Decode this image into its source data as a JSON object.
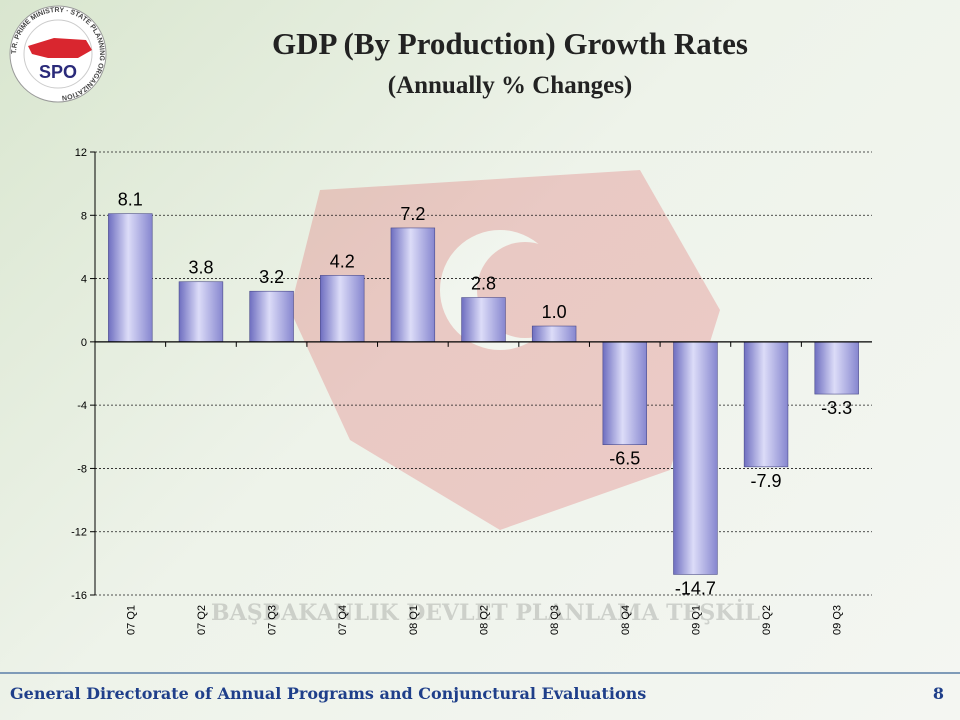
{
  "header": {
    "logo_ring_text": "T.R. PRIME MINISTRY · STATE PLANNING ORGANIZATION",
    "logo_abbr": "SPO",
    "logo_color": "#d9262f"
  },
  "watermark_text": "T.C. BAŞBAKANLIK DEVLET PLANLAMA TEŞKİLATI",
  "footer": {
    "text": "General Directorate of Annual Programs and Conjunctural Evaluations",
    "page_number": "8"
  },
  "chart_data": {
    "type": "bar",
    "title": "GDP (By Production) Growth Rates",
    "subtitle": "(Annually % Changes)",
    "categories": [
      "07 Q1",
      "07 Q2",
      "07 Q3",
      "07 Q4",
      "08 Q1",
      "08 Q2",
      "08 Q3",
      "08 Q4",
      "09 Q1",
      "09 Q2",
      "09 Q3"
    ],
    "values": [
      8.1,
      3.8,
      3.2,
      4.2,
      7.2,
      2.8,
      1.0,
      -6.5,
      -14.7,
      -7.9,
      -3.3
    ],
    "data_labels": [
      "8.1",
      "3.8",
      "3.2",
      "4.2",
      "7.2",
      "2.8",
      "1.0",
      "-6.5",
      "-14.7",
      "-7.9",
      "-3.3"
    ],
    "ylim": [
      -16,
      12
    ],
    "yticks": [
      12,
      8,
      4,
      0,
      -4,
      -8,
      -12,
      -16
    ],
    "grid": true,
    "bar_color": "#a3a3e0",
    "xlabel": "",
    "ylabel": ""
  }
}
